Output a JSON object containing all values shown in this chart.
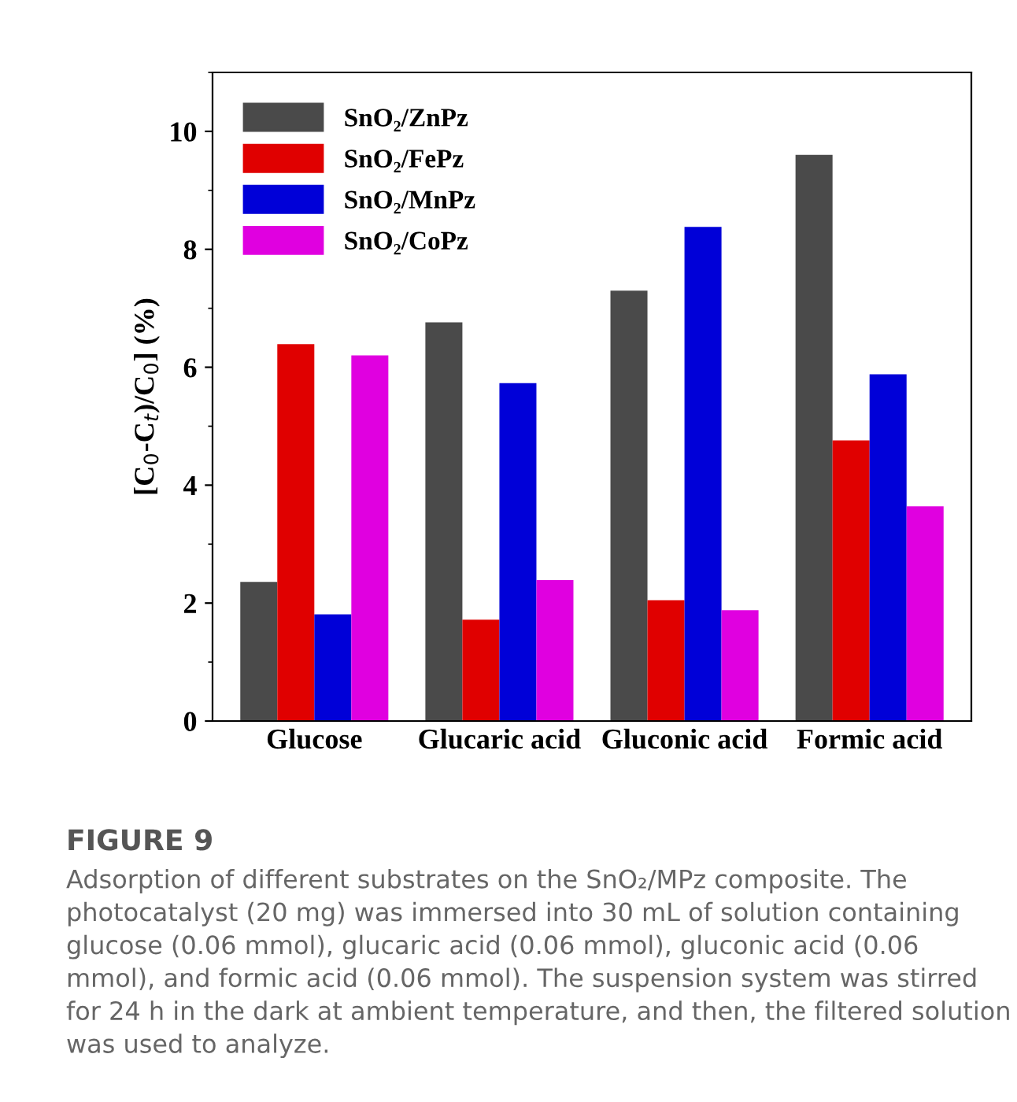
{
  "chart_data": {
    "type": "bar",
    "ylabel": "[C$_{0}$-C$_{t}$)/C$_{0}$] (%)",
    "categories": [
      "Glucose",
      "Glucaric acid",
      "Gluconic acid",
      "Formic acid"
    ],
    "series": [
      {
        "name": "SnO₂/ZnPz",
        "color": "#4a4a4a",
        "values": [
          2.36,
          6.76,
          7.3,
          9.6
        ]
      },
      {
        "name": "SnO₂/FePz",
        "color": "#e00000",
        "values": [
          6.39,
          1.72,
          2.05,
          4.76
        ]
      },
      {
        "name": "SnO₂/MnPz",
        "color": "#0000d8",
        "values": [
          1.81,
          5.73,
          8.38,
          5.88
        ]
      },
      {
        "name": "SnO₂/CoPz",
        "color": "#e000e0",
        "values": [
          6.2,
          2.39,
          1.88,
          3.64
        ]
      }
    ],
    "ylim": [
      0,
      11
    ],
    "yticks": [
      0,
      2,
      4,
      6,
      8,
      10
    ],
    "grid": false,
    "legend": "top left",
    "annotations": [
      "FIGURE 9",
      "Adsorption of different substrates on the SnO₂/MPz composite. The photocatalyst (20 mg) was immersed into 30 mL of solution containing glucose (0.06 mmol), glucaric acid (0.06 mmol), gluconic acid (0.06 mmol), and formic acid (0.06 mmol). The suspension system was stirred for 24 h in the dark at ambient temperature, and then, the filtered solution was used to analyze."
    ]
  }
}
